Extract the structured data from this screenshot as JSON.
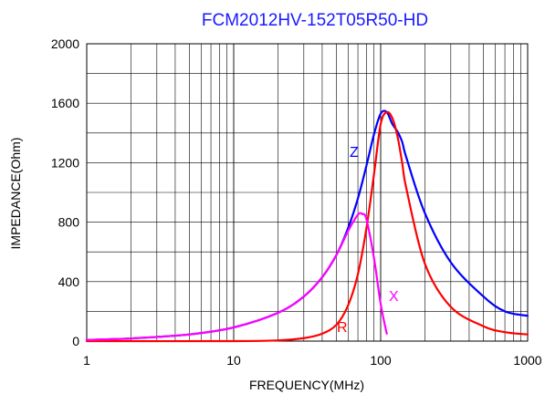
{
  "chart_data": {
    "type": "line",
    "title": "FCM2012HV-152T05R50-HD",
    "xlabel": "FREQUENCY(MHz)",
    "ylabel": "IMPEDANCE(Ohm)",
    "x_scale": "log",
    "xlim": [
      1,
      1000
    ],
    "ylim": [
      0,
      2000
    ],
    "x_ticks": [
      "1",
      "10",
      "100",
      "1000"
    ],
    "y_ticks": [
      "0",
      "400",
      "800",
      "1200",
      "1600",
      "2000"
    ],
    "grid": true,
    "legend": "none",
    "series": [
      {
        "name": "Z",
        "color": "#0000ff",
        "x": [
          1,
          2,
          5,
          10,
          20,
          30,
          40,
          50,
          60,
          70,
          80,
          90,
          100,
          110,
          120,
          130,
          140,
          150,
          200,
          300,
          500,
          700,
          1000
        ],
        "y": [
          8,
          18,
          45,
          92,
          190,
          300,
          430,
          580,
          760,
          960,
          1180,
          1390,
          1530,
          1540,
          1460,
          1410,
          1340,
          1230,
          860,
          530,
          300,
          200,
          170
        ]
      },
      {
        "name": "R",
        "color": "#ff0000",
        "x": [
          1,
          10,
          20,
          30,
          40,
          50,
          60,
          70,
          80,
          90,
          100,
          110,
          120,
          130,
          140,
          150,
          200,
          300,
          500,
          700,
          1000
        ],
        "y": [
          0,
          0,
          5,
          20,
          50,
          110,
          240,
          450,
          760,
          1120,
          1460,
          1540,
          1500,
          1380,
          1200,
          1020,
          520,
          230,
          100,
          60,
          45
        ]
      },
      {
        "name": "X",
        "color": "#ff00ff",
        "x": [
          1,
          2,
          5,
          10,
          20,
          30,
          40,
          50,
          60,
          70,
          75,
          80,
          90,
          100,
          110
        ],
        "y": [
          8,
          18,
          45,
          92,
          190,
          300,
          430,
          580,
          740,
          850,
          855,
          820,
          560,
          250,
          50
        ]
      }
    ]
  }
}
